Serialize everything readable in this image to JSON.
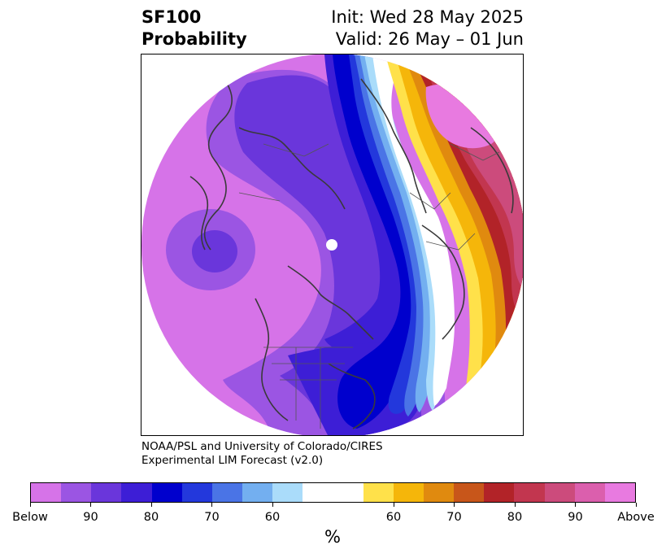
{
  "header": {
    "title_line1": "SF100",
    "title_line2": "Probability",
    "init_text": "Init: Wed 28 May 2025",
    "valid_text": "Valid: 26 May – 01 Jun"
  },
  "credit": {
    "line1": "NOAA/PSL and University of Colorado/CIRES",
    "line2": "Experimental LIM Forecast (v2.0)"
  },
  "colorbar": {
    "unit": "%",
    "tick_labels": [
      "Below",
      "90",
      "80",
      "70",
      "60",
      "60",
      "70",
      "80",
      "90",
      "Above"
    ],
    "below_colors": [
      "#d673e8",
      "#9b55e3",
      "#6a36db",
      "#3d1ed6",
      "#0000cd",
      "#2338dc",
      "#4a74e6",
      "#73aff0",
      "#aadcfa"
    ],
    "neutral_color": "#ffffff",
    "above_colors": [
      "#ffe14a",
      "#f5b60a",
      "#e08a0f",
      "#c8561a",
      "#b22328",
      "#c2364f",
      "#cc4b7c",
      "#db5fad",
      "#e87ae0"
    ]
  },
  "map": {
    "projection": "north-polar-stereographic",
    "variable": "SF100 probability",
    "palette": {
      "below_outer": "#d673e8",
      "below_2": "#9b55e3",
      "below_3": "#6a36db",
      "below_4": "#3d1ed6",
      "below_5": "#0000cd",
      "below_6": "#2338dc",
      "below_7": "#4a74e6",
      "below_8": "#73aff0",
      "below_9": "#aadcfa",
      "above_1": "#ffe14a",
      "above_2": "#f5b60a",
      "above_3": "#e08a0f",
      "above_5": "#b22328",
      "above_6": "#c2364f",
      "above_7": "#cc4b7c",
      "above_9": "#e87ae0"
    }
  }
}
